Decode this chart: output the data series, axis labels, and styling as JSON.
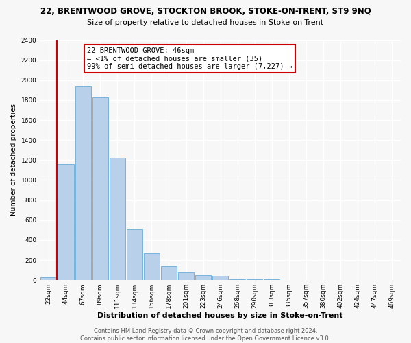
{
  "title": "22, BRENTWOOD GROVE, STOCKTON BROOK, STOKE-ON-TRENT, ST9 9NQ",
  "subtitle": "Size of property relative to detached houses in Stoke-on-Trent",
  "xlabel": "Distribution of detached houses by size in Stoke-on-Trent",
  "ylabel": "Number of detached properties",
  "bin_labels": [
    "22sqm",
    "44sqm",
    "67sqm",
    "89sqm",
    "111sqm",
    "134sqm",
    "156sqm",
    "178sqm",
    "201sqm",
    "223sqm",
    "246sqm",
    "268sqm",
    "290sqm",
    "313sqm",
    "335sqm",
    "357sqm",
    "380sqm",
    "402sqm",
    "424sqm",
    "447sqm",
    "469sqm"
  ],
  "bar_values": [
    30,
    1160,
    1940,
    1830,
    1220,
    510,
    270,
    140,
    75,
    50,
    40,
    10,
    5,
    5,
    2,
    2,
    1,
    1,
    0,
    0,
    0
  ],
  "bar_color": "#b8d0ea",
  "bar_edge_color": "#6aacd6",
  "vline_color": "#cc0000",
  "annotation_text": "22 BRENTWOOD GROVE: 46sqm\n← <1% of detached houses are smaller (35)\n99% of semi-detached houses are larger (7,227) →",
  "annotation_box_color": "#ffffff",
  "annotation_box_edge": "#cc0000",
  "ylim": [
    0,
    2400
  ],
  "yticks": [
    0,
    200,
    400,
    600,
    800,
    1000,
    1200,
    1400,
    1600,
    1800,
    2000,
    2200,
    2400
  ],
  "footer_line1": "Contains HM Land Registry data © Crown copyright and database right 2024.",
  "footer_line2": "Contains public sector information licensed under the Open Government Licence v3.0.",
  "bg_color": "#f7f7f7",
  "plot_bg_color": "#f7f7f7",
  "grid_color": "#ffffff",
  "title_fontsize": 8.5,
  "subtitle_fontsize": 8,
  "xlabel_fontsize": 8,
  "ylabel_fontsize": 7.5,
  "tick_fontsize": 6.5,
  "footer_fontsize": 6,
  "annotation_fontsize": 7.5
}
